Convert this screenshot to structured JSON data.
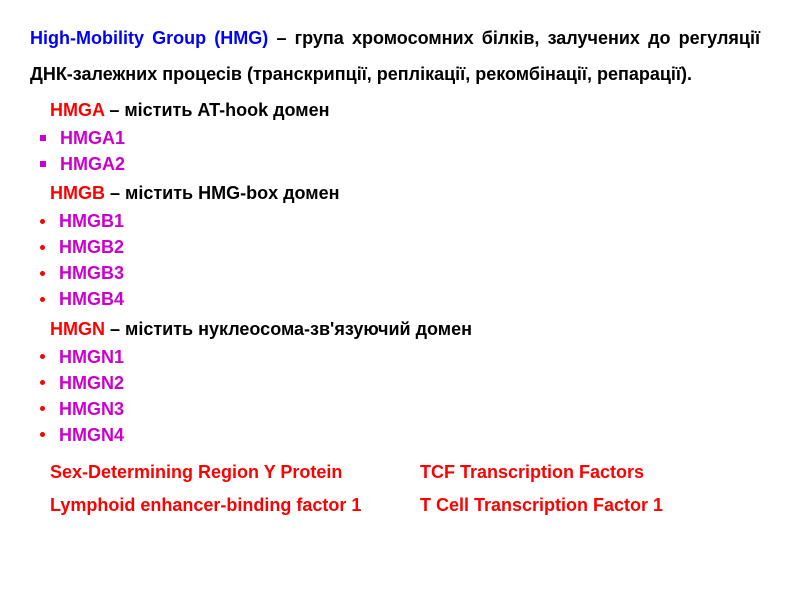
{
  "colors": {
    "title": "#0000ff",
    "family_name": "#ff0000",
    "member": "#cc00cc",
    "bottom_text": "#ff0000",
    "body_text": "#000000",
    "background": "#ffffff"
  },
  "typography": {
    "font_family": "Arial, sans-serif",
    "font_size_pt": 14,
    "font_weight": "bold"
  },
  "intro": {
    "title": "High-Mobility Group (HMG)",
    "text": " – група хромосомних білків, залучених до регуляції ДНК-залежних процесів (транскрипції, реплікації, рекомбінації, репарації)."
  },
  "families": [
    {
      "name": "HMGA",
      "description": " – містить AT-hook домен",
      "bullet": "square",
      "members": [
        "HMGA1",
        "HMGA2"
      ]
    },
    {
      "name": "HMGB",
      "description": " – містить HMG-box домен",
      "bullet": "round",
      "members": [
        "HMGB1",
        "HMGB2",
        "HMGB3",
        "HMGB4"
      ]
    },
    {
      "name": "HMGN",
      "description": " – містить нуклеосома-зв'язуючий домен",
      "bullet": "round",
      "members": [
        "HMGN1",
        "HMGN2",
        "HMGN3",
        "HMGN4"
      ]
    }
  ],
  "bottom": {
    "row1_left": "Sex-Determining Region Y Protein",
    "row1_right": "TCF Transcription Factors",
    "row2_left": "Lymphoid enhancer-binding factor 1",
    "row2_right": "T Cell Transcription Factor 1"
  }
}
